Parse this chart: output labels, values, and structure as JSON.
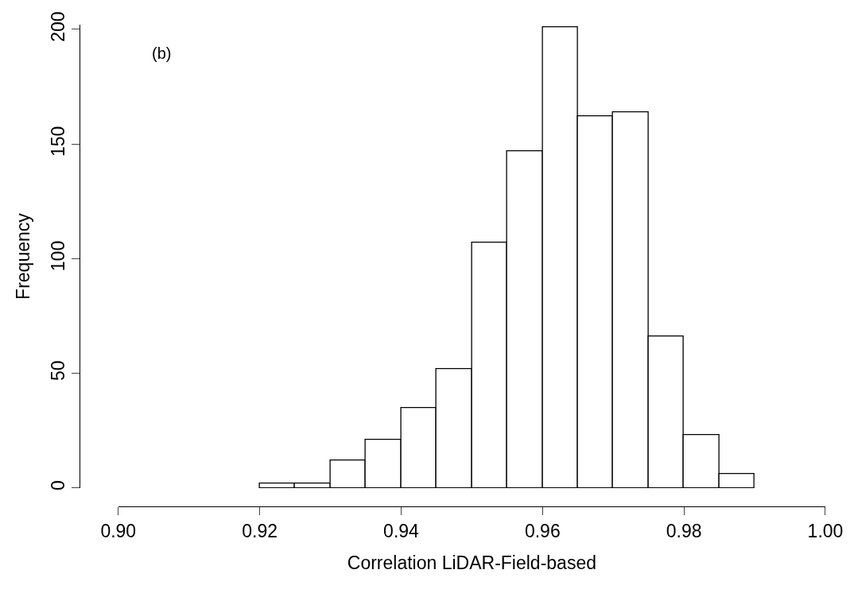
{
  "chart_data": {
    "type": "histogram",
    "xlabel": "Correlation LiDAR-Field-based",
    "ylabel": "Frequency",
    "annotations": [
      "(b)"
    ],
    "bins": [
      0.92,
      0.925,
      0.93,
      0.935,
      0.94,
      0.945,
      0.95,
      0.955,
      0.96,
      0.965,
      0.97,
      0.975,
      0.98,
      0.985,
      0.99
    ],
    "values": [
      2,
      2,
      12,
      21,
      35,
      52,
      107,
      147,
      201,
      162,
      164,
      66,
      23,
      6
    ],
    "color": "#ffffff",
    "xlim": [
      0.9,
      1.0
    ],
    "xticks": [
      {
        "value": 0.9,
        "label": "0.90"
      },
      {
        "value": 0.92,
        "label": "0.92"
      },
      {
        "value": 0.94,
        "label": "0.94"
      },
      {
        "value": 0.96,
        "label": "0.96"
      },
      {
        "value": 0.98,
        "label": "0.98"
      },
      {
        "value": 1.0,
        "label": "1.00"
      }
    ],
    "ylim": [
      0,
      202
    ],
    "yticks": [
      0,
      50,
      100,
      150,
      200
    ],
    "grid": false
  }
}
